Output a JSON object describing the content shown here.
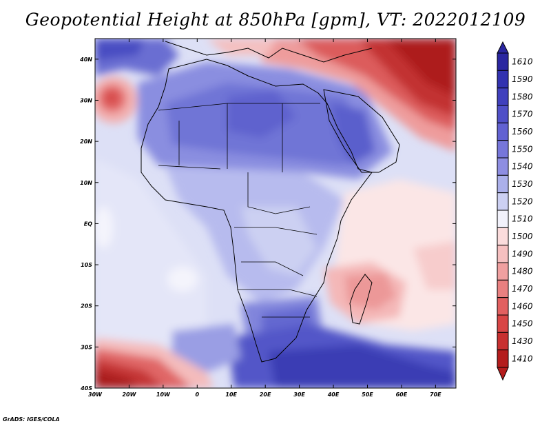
{
  "title": "Geopotential Height at 850hPa [gpm], VT: 2022012109",
  "footer": "GrADS: IGES/COLA",
  "map": {
    "lat_labels": [
      "40N",
      "30N",
      "20N",
      "10N",
      "EQ",
      "10S",
      "20S",
      "30S",
      "40S"
    ],
    "lon_labels": [
      "30W",
      "20W",
      "10W",
      "0",
      "10E",
      "20E",
      "30E",
      "40E",
      "50E",
      "60E",
      "70E"
    ],
    "lat_values": [
      40,
      30,
      20,
      10,
      0,
      -10,
      -20,
      -30,
      -40
    ],
    "lon_values": [
      -30,
      -20,
      -10,
      0,
      10,
      20,
      30,
      40,
      50,
      60,
      70
    ],
    "extent": {
      "lon_min": -30,
      "lon_max": 76,
      "lat_min": -40,
      "lat_max": 45
    }
  },
  "colorbar": {
    "levels": [
      "1610",
      "1590",
      "1580",
      "1570",
      "1560",
      "1550",
      "1540",
      "1530",
      "1520",
      "1510",
      "1500",
      "1490",
      "1480",
      "1470",
      "1460",
      "1450",
      "1430",
      "1410"
    ],
    "colors": [
      "#2a26a0",
      "#3232b0",
      "#4040bd",
      "#5050c8",
      "#6262d2",
      "#7676da",
      "#8e8ee2",
      "#abb0ea",
      "#ccd0f2",
      "#f2f2fb",
      "#fbdcdc",
      "#f6c0c0",
      "#f0a0a0",
      "#e98080",
      "#e26060",
      "#d84545",
      "#c83030",
      "#b41c1c"
    ]
  }
}
